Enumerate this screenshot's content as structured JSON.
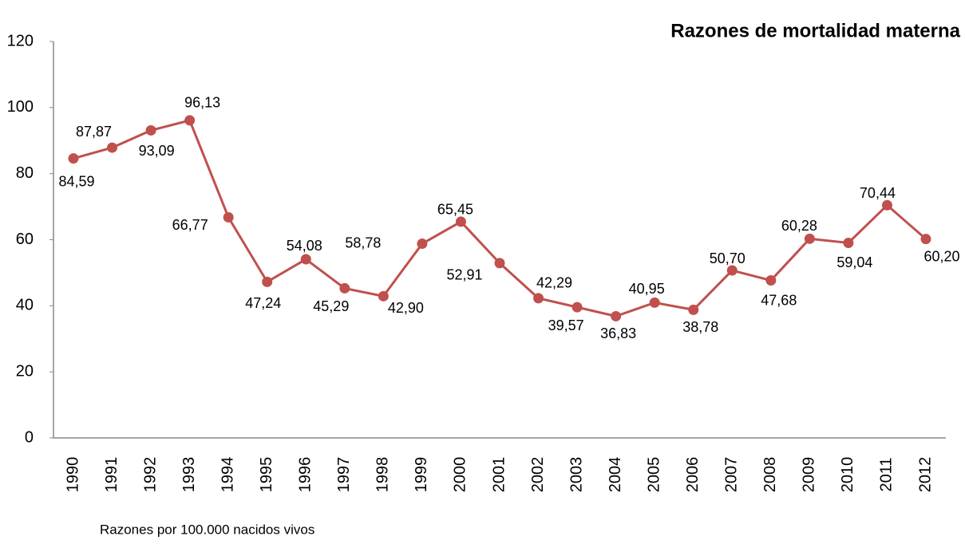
{
  "chart_data": {
    "type": "line",
    "title": "Razones de mortalidad materna",
    "x_label": "Razones  por 100.000 nacidos vivos",
    "categories": [
      "1990",
      "1991",
      "1992",
      "1993",
      "1994",
      "1995",
      "1996",
      "1997",
      "1998",
      "1999",
      "2000",
      "2001",
      "2002",
      "2003",
      "2004",
      "2005",
      "2006",
      "2007",
      "2008",
      "2009",
      "2010",
      "2011",
      "2012"
    ],
    "series": [
      {
        "name": "Razones de mortalidad materna",
        "color": "#c0504d",
        "values": [
          84.59,
          87.87,
          93.09,
          96.13,
          66.77,
          47.24,
          54.08,
          45.29,
          42.9,
          58.78,
          65.45,
          52.91,
          42.29,
          39.57,
          36.83,
          40.95,
          38.78,
          50.7,
          47.68,
          60.28,
          59.04,
          70.44,
          60.2
        ],
        "value_labels": [
          "84,59",
          "87,87",
          "93,09",
          "96,13",
          "66,77",
          "47,24",
          "54,08",
          "45,29",
          "42,90",
          "58,78",
          "65,45",
          "52,91",
          "42,29",
          "39,57",
          "36,83",
          "40,95",
          "38,78",
          "50,70",
          "47,68",
          "60,28",
          "59,04",
          "70,44",
          "60,20"
        ]
      }
    ],
    "ylim": [
      0,
      120
    ],
    "yticks": [
      0,
      20,
      40,
      60,
      80,
      100,
      120
    ],
    "grid": false
  }
}
